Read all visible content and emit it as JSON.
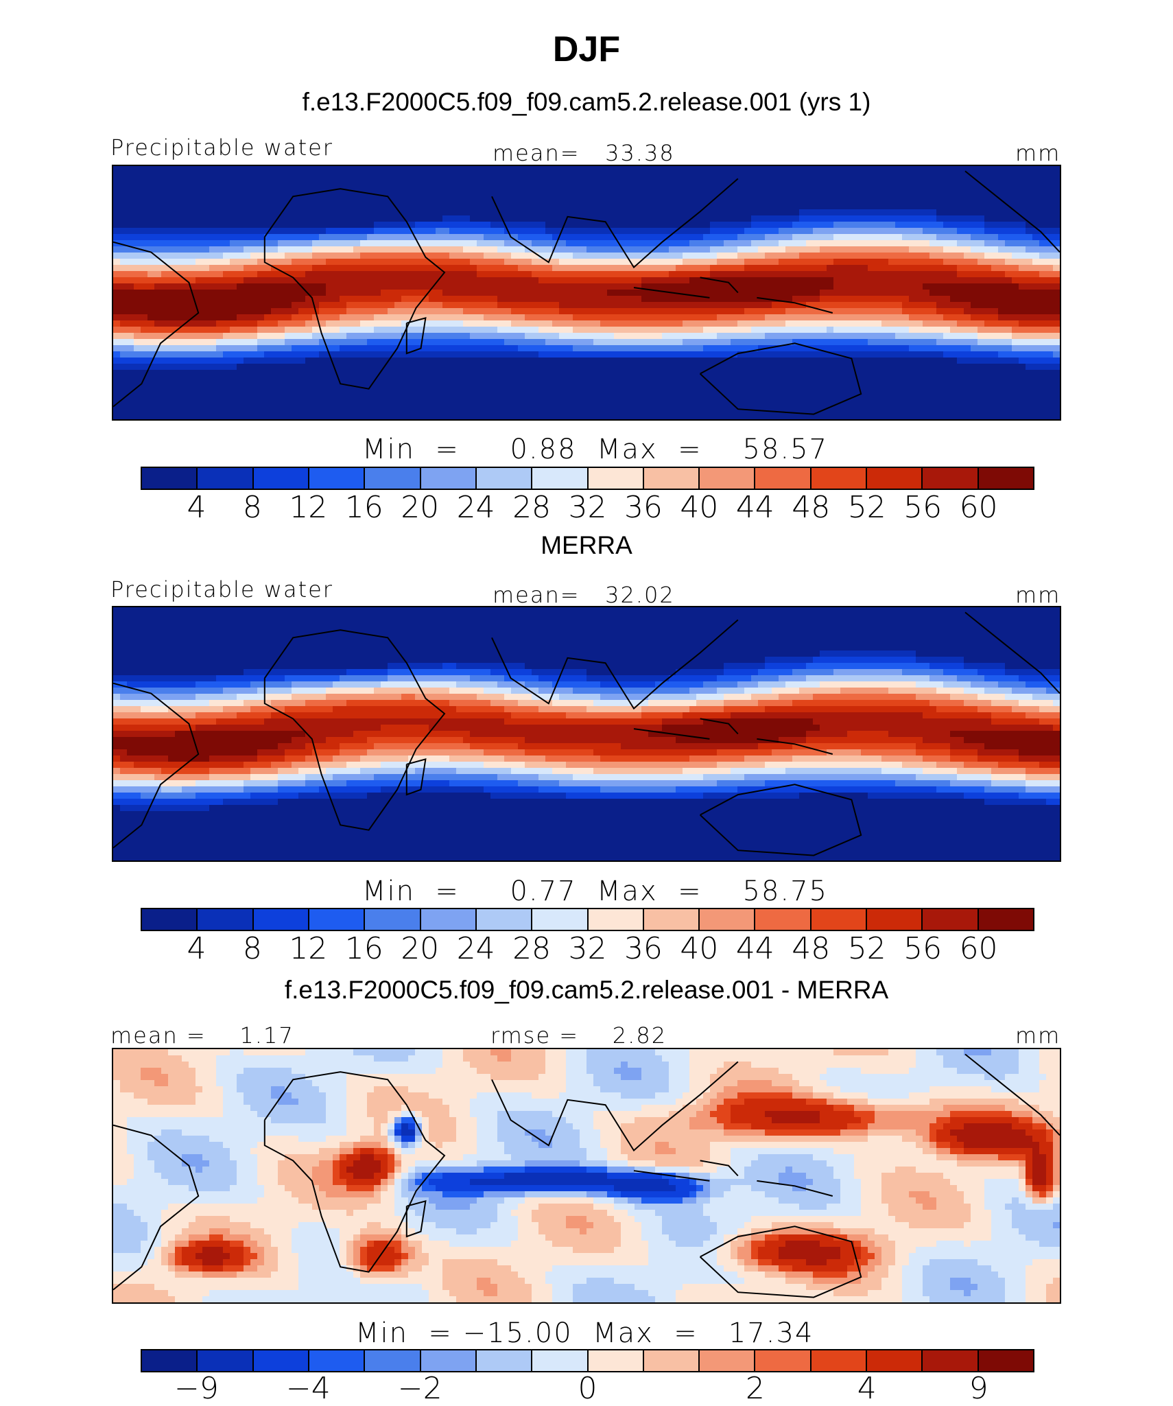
{
  "page": {
    "title": "DJF"
  },
  "chart_data": [
    {
      "type": "heatmap",
      "panel_title": "f.e13.F2000C5.f09_f09.cam5.2.release.001 (yrs 1)",
      "left_label": "Precipitable water",
      "center_label": "mean=   33.38",
      "units": "mm",
      "min_max_label": "Min  =     0.88  Max  =    58.57",
      "stats": {
        "mean": 33.38,
        "min": 0.88,
        "max": 58.57
      },
      "levels": [
        4,
        8,
        12,
        16,
        20,
        24,
        28,
        32,
        36,
        40,
        44,
        48,
        52,
        56,
        60
      ],
      "tick_labels": [
        "4",
        "8",
        "12",
        "16",
        "20",
        "24",
        "28",
        "32",
        "36",
        "40",
        "44",
        "48",
        "52",
        "56",
        "60"
      ],
      "colors": [
        "#0a1f8a",
        "#0a30b8",
        "#0d40dc",
        "#1e5cf0",
        "#4a7fec",
        "#7ea3f2",
        "#aecaf6",
        "#d8e8fb",
        "#fde6d6",
        "#f8c0a4",
        "#f39877",
        "#ee6a42",
        "#e2451a",
        "#cc2a08",
        "#a8180a",
        "#7e0a05"
      ],
      "field": "model"
    },
    {
      "type": "heatmap",
      "panel_title": "MERRA",
      "left_label": "Precipitable water",
      "center_label": "mean=   32.02",
      "units": "mm",
      "min_max_label": "Min  =     0.77  Max  =    58.75",
      "stats": {
        "mean": 32.02,
        "min": 0.77,
        "max": 58.75
      },
      "levels": [
        4,
        8,
        12,
        16,
        20,
        24,
        28,
        32,
        36,
        40,
        44,
        48,
        52,
        56,
        60
      ],
      "tick_labels": [
        "4",
        "8",
        "12",
        "16",
        "20",
        "24",
        "28",
        "32",
        "36",
        "40",
        "44",
        "48",
        "52",
        "56",
        "60"
      ],
      "colors": [
        "#0a1f8a",
        "#0a30b8",
        "#0d40dc",
        "#1e5cf0",
        "#4a7fec",
        "#7ea3f2",
        "#aecaf6",
        "#d8e8fb",
        "#fde6d6",
        "#f8c0a4",
        "#f39877",
        "#ee6a42",
        "#e2451a",
        "#cc2a08",
        "#a8180a",
        "#7e0a05"
      ],
      "field": "obs"
    },
    {
      "type": "heatmap",
      "panel_title": "f.e13.F2000C5.f09_f09.cam5.2.release.001 - MERRA",
      "left_label": "mean =    1.17",
      "center_label": "rmse =    2.82",
      "units": "mm",
      "min_max_label": "Min  = −15.00  Max  =   17.34",
      "stats": {
        "mean": 1.17,
        "rmse": 2.82,
        "min": -15.0,
        "max": 17.34
      },
      "levels": [
        -9,
        -6,
        -4,
        -3,
        -2,
        -1,
        0,
        1,
        2,
        3,
        4,
        6,
        9
      ],
      "tick_labels": [
        "−9",
        "−4",
        "−2",
        "0",
        "2",
        "4",
        "9"
      ],
      "colors": [
        "#0a1f8a",
        "#0a30b8",
        "#0d40dc",
        "#1e5cf0",
        "#4a7fec",
        "#7ea3f2",
        "#aecaf6",
        "#d8e8fb",
        "#fde6d6",
        "#f8c0a4",
        "#f39877",
        "#ee6a42",
        "#e2451a",
        "#cc2a08",
        "#a8180a",
        "#7e0a05"
      ],
      "field": "diff"
    }
  ]
}
